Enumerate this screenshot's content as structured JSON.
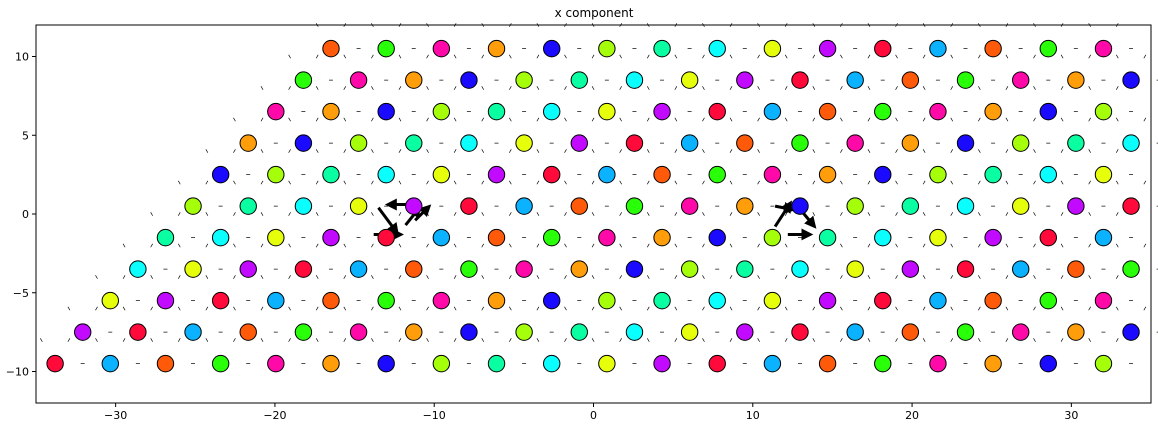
{
  "chart_data": {
    "type": "scatter",
    "title": "x component",
    "xlabel": "",
    "ylabel": "",
    "xlim": [
      -35,
      35
    ],
    "ylim": [
      -12,
      12
    ],
    "xticks": [
      -30,
      -20,
      -10,
      0,
      10,
      20,
      30
    ],
    "yticks": [
      -10,
      -5,
      0,
      5,
      10
    ],
    "grid": false,
    "lattice": {
      "a1": [
        3.464,
        0
      ],
      "a2": [
        1.732,
        2
      ],
      "i_range": [
        0,
        19
      ],
      "j_range": [
        0,
        10
      ],
      "origin": [
        -33.8,
        -9.5
      ]
    },
    "palette": [
      "#ff0a3a",
      "#ff9e0a",
      "#e6ff0a",
      "#2aff0a",
      "#0affa2",
      "#0ab2ff",
      "#1a0aff",
      "#c10aff",
      "#ff0aa9",
      "#0affff",
      "#ff5a0a",
      "#a6ff0a"
    ],
    "clusters": [
      {
        "center": [
          -12.1,
          0.5
        ],
        "arrows": [
          {
            "from": [
              -13.8,
              -1.3
            ],
            "to": [
              -12.2,
              -1.3
            ]
          },
          {
            "from": [
              -11.0,
              0.6
            ],
            "to": [
              -12.8,
              0.6
            ]
          },
          {
            "from": [
              -13.5,
              0.4
            ],
            "to": [
              -12.4,
              -1.1
            ]
          },
          {
            "from": [
              -11.2,
              -0.4
            ],
            "to": [
              -10.4,
              0.4
            ]
          },
          {
            "from": [
              -11.8,
              -0.7
            ],
            "to": [
              -11.0,
              0.3
            ]
          }
        ]
      },
      {
        "center": [
          12.5,
          0.2
        ],
        "arrows": [
          {
            "from": [
              11.4,
              -0.8
            ],
            "to": [
              12.3,
              0.6
            ]
          },
          {
            "from": [
              12.8,
              0.5
            ],
            "to": [
              13.8,
              -0.7
            ]
          },
          {
            "from": [
              11.4,
              0.5
            ],
            "to": [
              12.4,
              0.3
            ]
          },
          {
            "from": [
              12.2,
              -1.3
            ],
            "to": [
              13.5,
              -1.3
            ]
          }
        ]
      }
    ]
  }
}
